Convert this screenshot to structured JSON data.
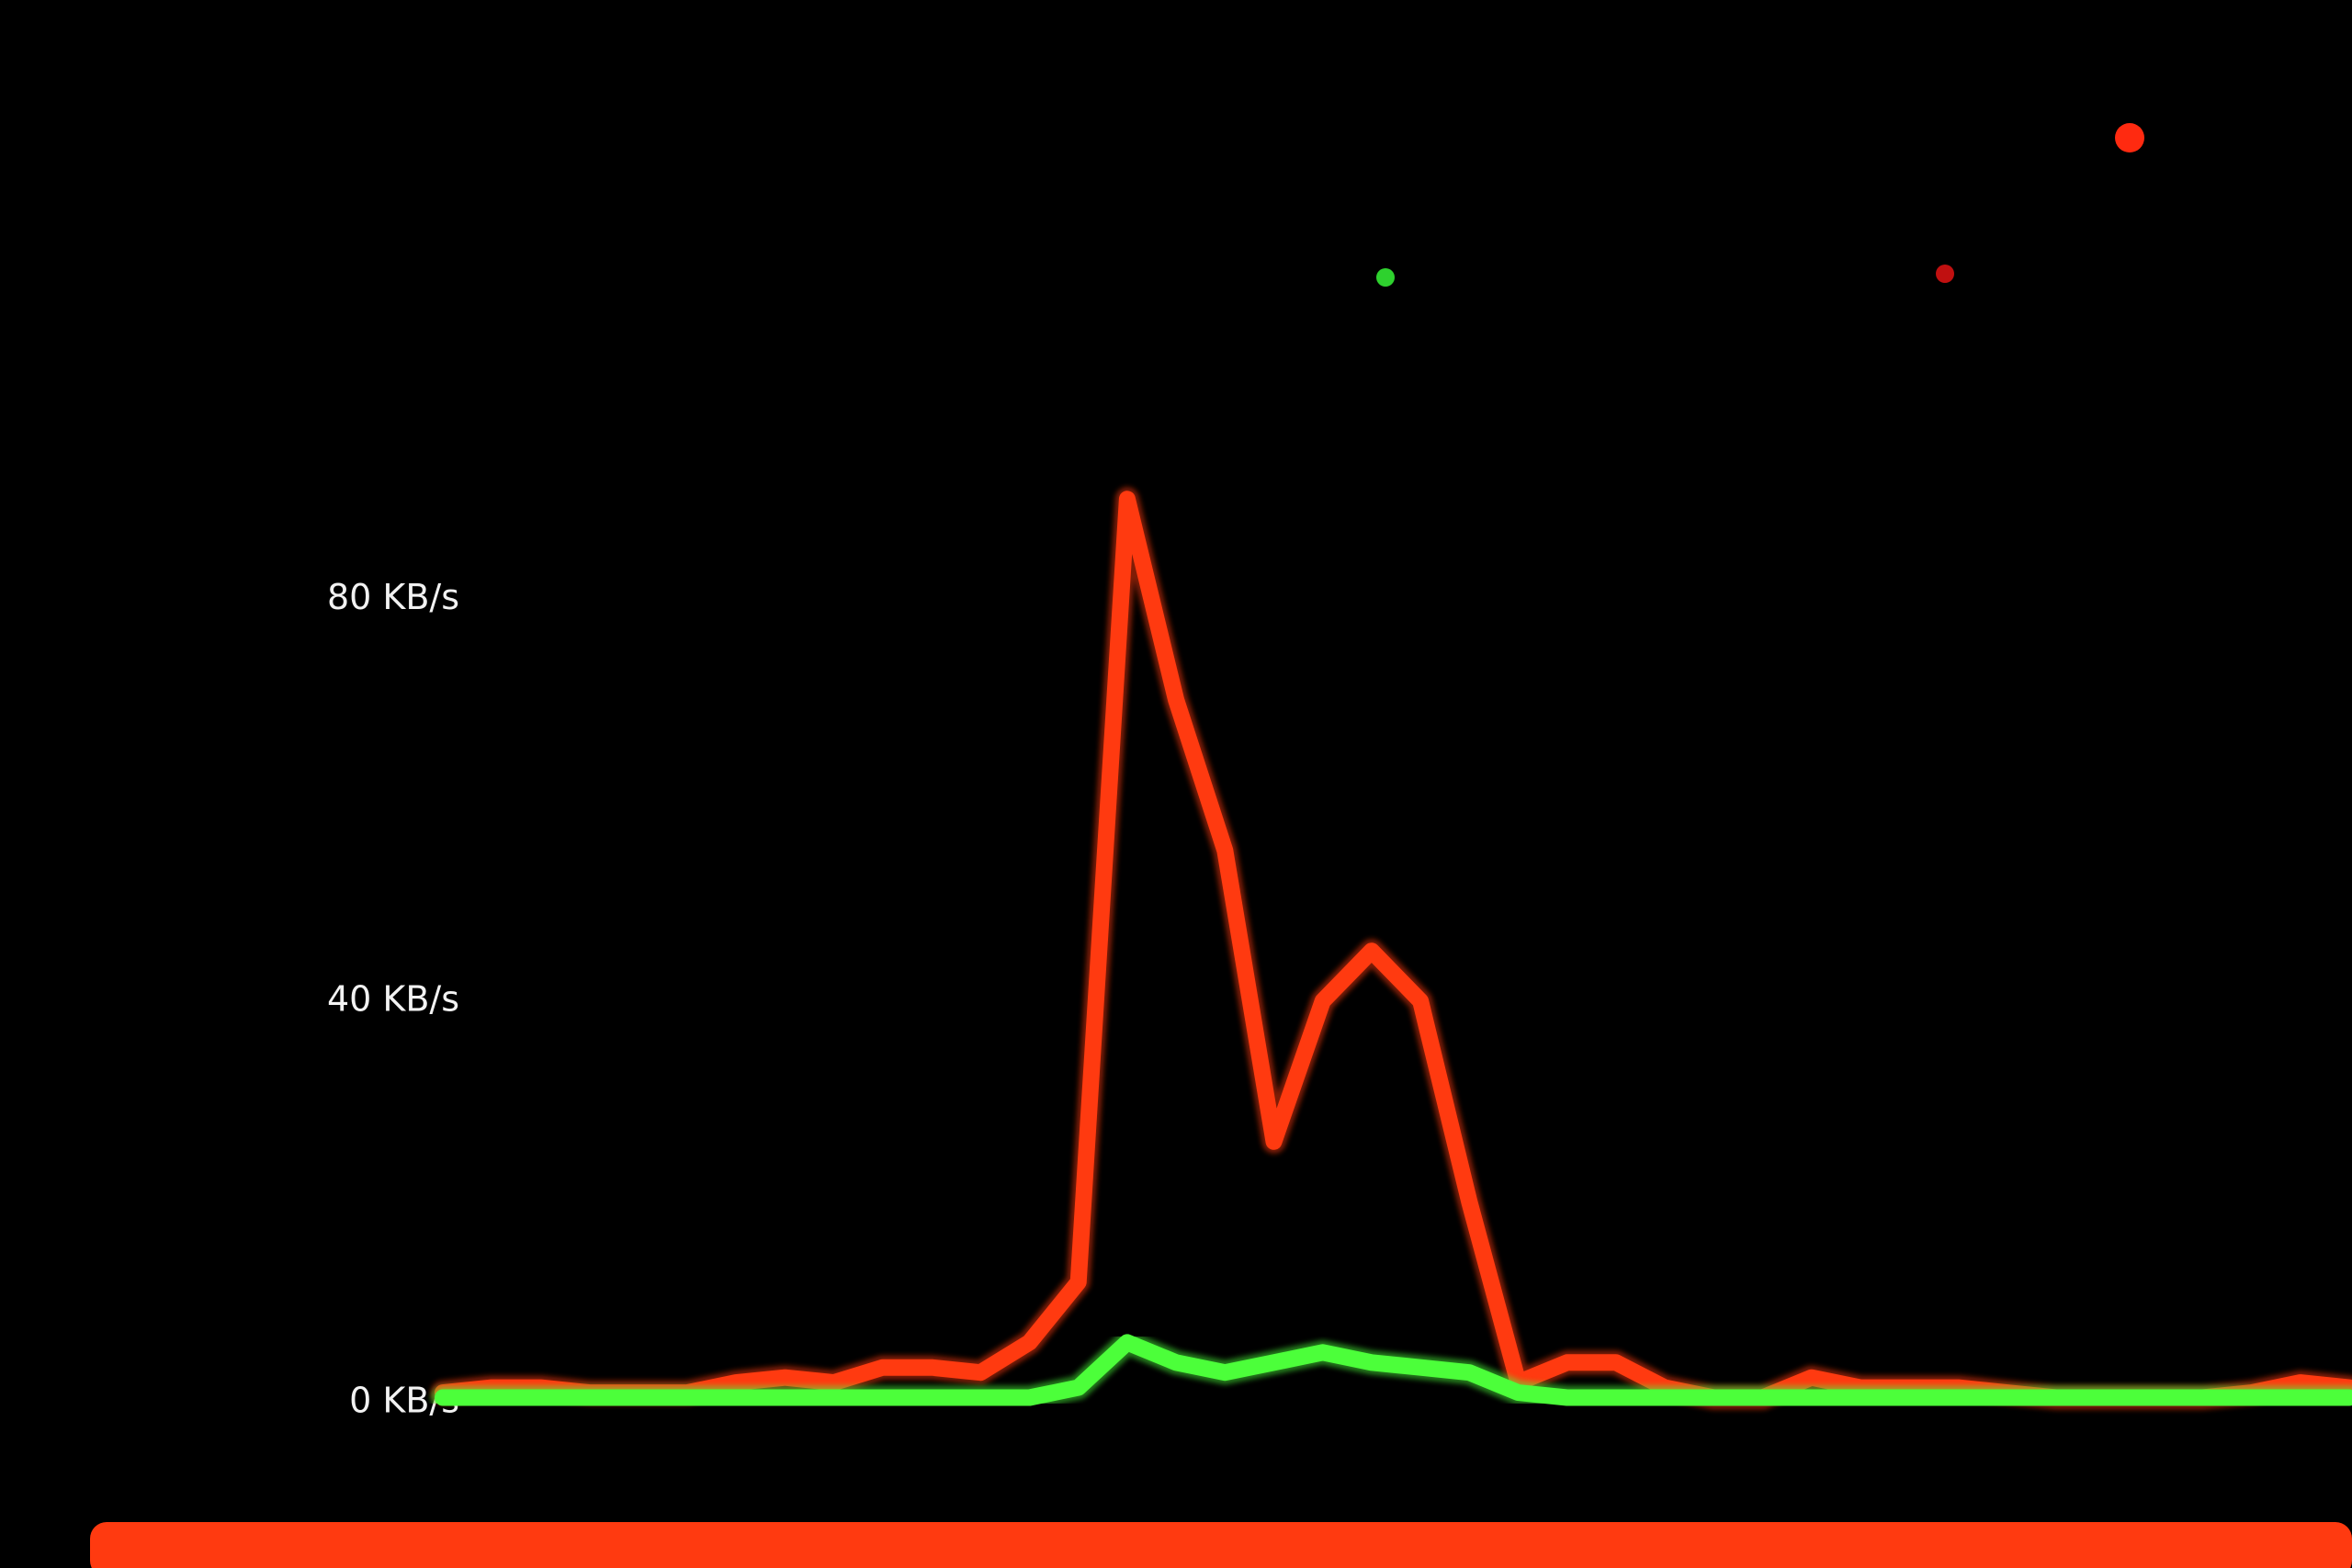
{
  "chart_data": {
    "type": "line",
    "categories": [
      null,
      null,
      null,
      null,
      null,
      null,
      null,
      null,
      null,
      null,
      null,
      null,
      null,
      null,
      null,
      null,
      null,
      null,
      null,
      null,
      null,
      null,
      null,
      null,
      null,
      null,
      null,
      null,
      null,
      null,
      null,
      null,
      null,
      null,
      null,
      null,
      null,
      null,
      null,
      null
    ],
    "series": [
      {
        "color": "#ff3a10",
        "values": [
          1,
          1.5,
          1.5,
          1,
          1,
          1,
          2,
          2.5,
          2,
          3.5,
          3.5,
          3,
          6,
          12,
          90,
          70,
          55,
          26,
          40,
          45,
          40,
          20,
          2,
          4,
          4,
          1.5,
          0.5,
          0.5,
          2.5,
          1.5,
          1.5,
          1.5,
          1,
          0.5,
          0.5,
          0.5,
          0.5,
          1,
          2,
          1.5
        ]
      },
      {
        "color": "#4cff3a",
        "values": [
          0.5,
          0.5,
          0.5,
          0.5,
          0.5,
          0.5,
          0.5,
          0.5,
          0.5,
          0.5,
          0.5,
          0.5,
          0.5,
          1.5,
          6,
          4,
          3,
          4,
          5,
          4,
          3.5,
          3,
          1,
          0.5,
          0.5,
          0.5,
          0.5,
          0.5,
          0.5,
          0.5,
          0.5,
          0.5,
          0.5,
          0.5,
          0.5,
          0.5,
          0.5,
          0.5,
          0.5,
          0.5
        ]
      }
    ],
    "ylim": [
      0,
      100
    ],
    "yticks": [
      {
        "value": 0,
        "label": "0 KB/s"
      },
      {
        "value": 40,
        "label": "40 KB/s"
      },
      {
        "value": 80,
        "label": "80 KB/s"
      }
    ]
  }
}
